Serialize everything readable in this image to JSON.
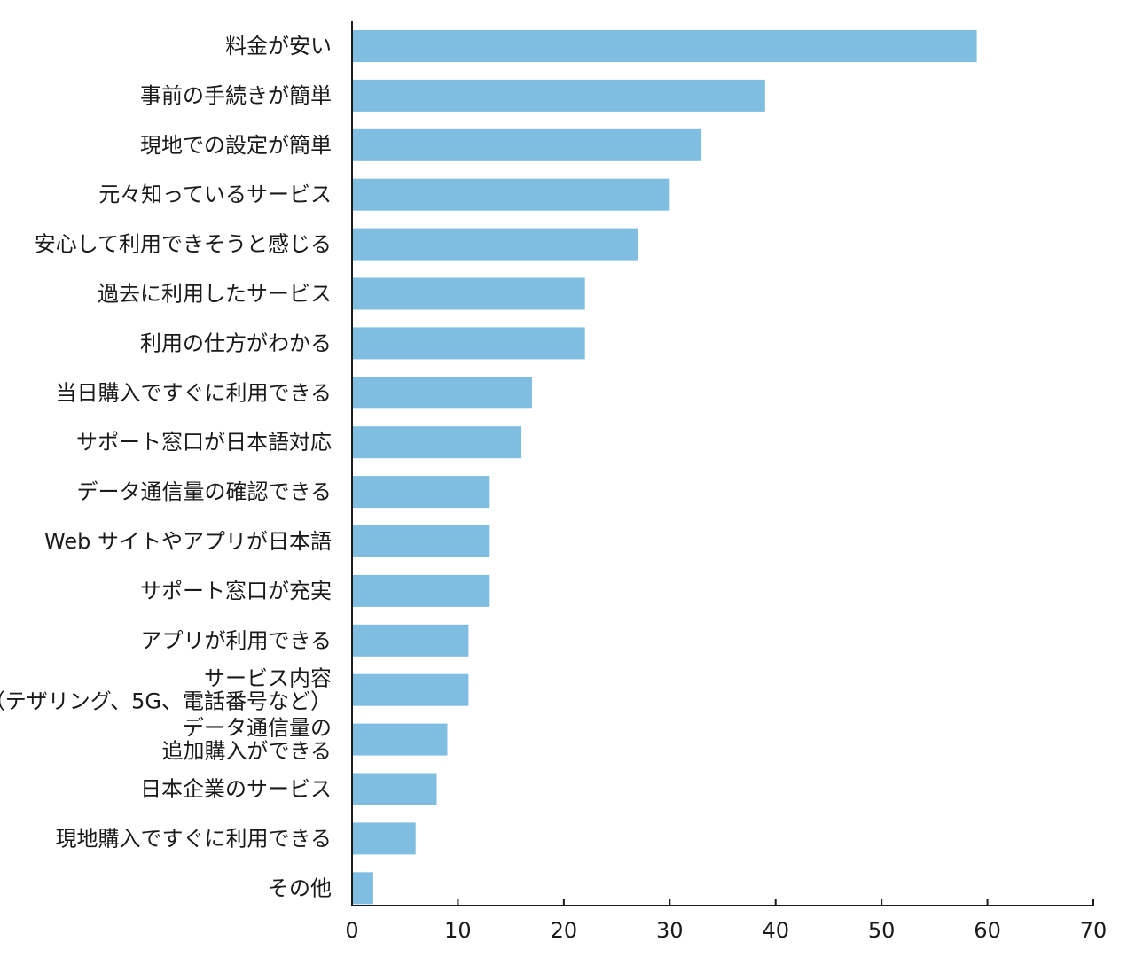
{
  "chart_data": {
    "type": "bar",
    "orientation": "horizontal",
    "categories": [
      [
        "料金が安い"
      ],
      [
        "事前の手続きが簡単"
      ],
      [
        "現地での設定が簡単"
      ],
      [
        "元々知っているサービス"
      ],
      [
        "安心して利用できそうと感じる"
      ],
      [
        "過去に利用したサービス"
      ],
      [
        "利用の仕方がわかる"
      ],
      [
        "当日購入ですぐに利用できる"
      ],
      [
        "サポート窓口が日本語対応"
      ],
      [
        "データ通信量の確認できる"
      ],
      [
        "Web サイトやアプリが日本語"
      ],
      [
        "サポート窓口が充実"
      ],
      [
        "アプリが利用できる"
      ],
      [
        "サービス内容",
        "（テザリング、5G、電話番号など）"
      ],
      [
        "データ通信量の",
        "追加購入ができる"
      ],
      [
        "日本企業のサービス"
      ],
      [
        "現地購入ですぐに利用できる"
      ],
      [
        "その他"
      ]
    ],
    "values": [
      59,
      39,
      33,
      30,
      27,
      22,
      22,
      17,
      16,
      13,
      13,
      13,
      11,
      11,
      9,
      8,
      6,
      2
    ],
    "xlim": [
      0,
      70
    ],
    "xticks": [
      0,
      10,
      20,
      30,
      40,
      50,
      60,
      70
    ],
    "bar_color": "#7fbde1",
    "axis_color": "#1a1a1a",
    "grid": false,
    "legend": "none",
    "title": "",
    "xlabel": "",
    "ylabel": ""
  }
}
